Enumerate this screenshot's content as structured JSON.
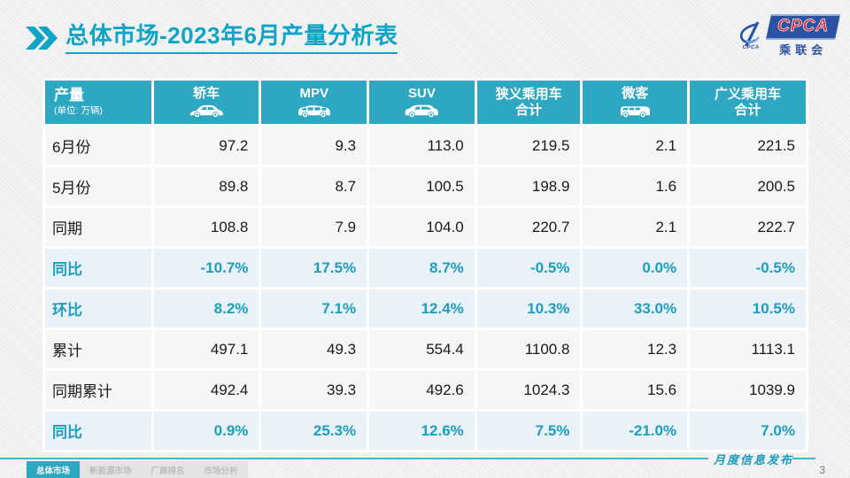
{
  "header": {
    "title_prefix": "总体市场",
    "title_suffix": "-2023年6月产量分析表"
  },
  "logo": {
    "acronym": "CPCA",
    "swoosh_caption": "CPCA",
    "chinese": "乘联会"
  },
  "watermark": {
    "text_main": "CPCA",
    "text_sub": "乘联会"
  },
  "table": {
    "corner": {
      "title": "产量",
      "unit": "(单位: 万辆)"
    },
    "columns": [
      {
        "label": "轿车",
        "icon": "sedan-icon"
      },
      {
        "label": "MPV",
        "icon": "mpv-icon"
      },
      {
        "label": "SUV",
        "icon": "suv-icon"
      },
      {
        "label": "狭义乘用车",
        "label2": "合计"
      },
      {
        "label": "微客",
        "icon": "microvan-icon"
      },
      {
        "label": "广义乘用车",
        "label2": "合计"
      }
    ],
    "rows": [
      {
        "label": "6月份",
        "type": "normal",
        "values": [
          "97.2",
          "9.3",
          "113.0",
          "219.5",
          "2.1",
          "221.5"
        ]
      },
      {
        "label": "5月份",
        "type": "normal",
        "values": [
          "89.8",
          "8.7",
          "100.5",
          "198.9",
          "1.6",
          "200.5"
        ]
      },
      {
        "label": "同期",
        "type": "normal",
        "values": [
          "108.8",
          "7.9",
          "104.0",
          "220.7",
          "2.1",
          "222.7"
        ]
      },
      {
        "label": "同比",
        "type": "percent",
        "values": [
          "-10.7%",
          "17.5%",
          "8.7%",
          "-0.5%",
          "0.0%",
          "-0.5%"
        ]
      },
      {
        "label": "环比",
        "type": "percent",
        "values": [
          "8.2%",
          "7.1%",
          "12.4%",
          "10.3%",
          "33.0%",
          "10.5%"
        ]
      },
      {
        "label": "累计",
        "type": "normal",
        "values": [
          "497.1",
          "49.3",
          "554.4",
          "1100.8",
          "12.3",
          "1113.1"
        ]
      },
      {
        "label": "同期累计",
        "type": "normal",
        "values": [
          "492.4",
          "39.3",
          "492.6",
          "1024.3",
          "15.6",
          "1039.9"
        ]
      },
      {
        "label": "同比",
        "type": "percent",
        "values": [
          "0.9%",
          "25.3%",
          "12.6%",
          "7.5%",
          "-21.0%",
          "7.0%"
        ]
      }
    ]
  },
  "footer": {
    "tabs": [
      {
        "label": "总体市场",
        "active": true
      },
      {
        "label": "新能源市场",
        "active": false
      },
      {
        "label": "厂商排名",
        "active": false
      },
      {
        "label": "市场分析",
        "active": false
      }
    ],
    "caption": "月度信息发布",
    "page_number": "3"
  },
  "colors": {
    "accent_teal": "#0ea4c6",
    "header_bg": "#2da7c2",
    "percent_text": "#1e9dbf",
    "percent_row_bg": "#e8f2f8",
    "logo_blue": "#2b52a3",
    "logo_red": "#d9232e"
  }
}
